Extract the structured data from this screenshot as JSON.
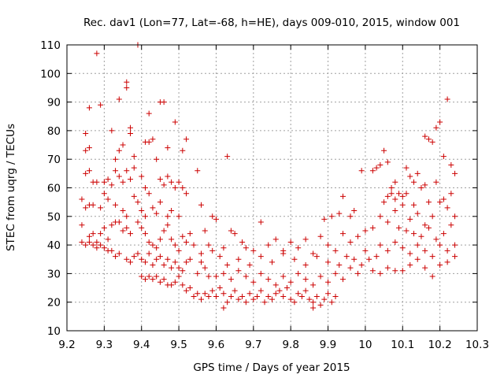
{
  "chart_data": {
    "type": "scatter",
    "title": "Rec. dav1 (Lon=77, Lat=-68, h=HE), days 009-010, 2015, window 001",
    "xlabel": "GPS time / Days of year 2015",
    "ylabel": "STEC from uqrg / TECUs",
    "xlim": [
      9.2,
      10.3
    ],
    "ylim": [
      10,
      110
    ],
    "xticks": [
      9.2,
      9.3,
      9.4,
      9.5,
      9.6,
      9.7,
      9.8,
      9.9,
      10,
      10.1,
      10.2,
      10.3
    ],
    "xtick_labels": [
      "9.2",
      "9.3",
      "9.4",
      "9.5",
      "9.6",
      "9.7",
      "9.8",
      "9.9",
      "10",
      "10.1",
      "10.2",
      "10.3"
    ],
    "yticks": [
      10,
      20,
      30,
      40,
      50,
      60,
      70,
      80,
      90,
      100,
      110
    ],
    "ytick_labels": [
      "10",
      "20",
      "30",
      "40",
      "50",
      "60",
      "70",
      "80",
      "90",
      "100",
      "110"
    ],
    "grid": true,
    "marker_color": "#cc0000",
    "marker": "plus",
    "points": [
      [
        9.28,
        107
      ],
      [
        9.39,
        110
      ],
      [
        9.36,
        97
      ],
      [
        9.36,
        95
      ],
      [
        9.34,
        91
      ],
      [
        9.29,
        89
      ],
      [
        9.26,
        88
      ],
      [
        9.45,
        90
      ],
      [
        9.46,
        90
      ],
      [
        9.42,
        86
      ],
      [
        9.49,
        83
      ],
      [
        9.37,
        81
      ],
      [
        9.37,
        79
      ],
      [
        9.32,
        80
      ],
      [
        9.41,
        76
      ],
      [
        9.42,
        76
      ],
      [
        9.43,
        77
      ],
      [
        9.52,
        77
      ],
      [
        9.47,
        74
      ],
      [
        9.51,
        73
      ],
      [
        9.26,
        74
      ],
      [
        9.25,
        73
      ],
      [
        9.35,
        75
      ],
      [
        9.34,
        73
      ],
      [
        9.38,
        71
      ],
      [
        9.33,
        70
      ],
      [
        9.63,
        71
      ],
      [
        9.25,
        79
      ],
      [
        9.26,
        66
      ],
      [
        9.25,
        65
      ],
      [
        9.27,
        62
      ],
      [
        9.28,
        62
      ],
      [
        9.3,
        62
      ],
      [
        9.31,
        63
      ],
      [
        9.32,
        61
      ],
      [
        9.33,
        66
      ],
      [
        9.34,
        64
      ],
      [
        9.35,
        62
      ],
      [
        9.36,
        66
      ],
      [
        9.37,
        63
      ],
      [
        9.38,
        67
      ],
      [
        9.4,
        64
      ],
      [
        9.41,
        60
      ],
      [
        9.42,
        58
      ],
      [
        9.44,
        70
      ],
      [
        9.45,
        63
      ],
      [
        9.46,
        61
      ],
      [
        9.47,
        64
      ],
      [
        9.48,
        62
      ],
      [
        9.49,
        60
      ],
      [
        9.5,
        62
      ],
      [
        9.51,
        60
      ],
      [
        9.55,
        66
      ],
      [
        9.24,
        56
      ],
      [
        9.25,
        53
      ],
      [
        9.26,
        54
      ],
      [
        9.27,
        54
      ],
      [
        9.29,
        53
      ],
      [
        9.3,
        58
      ],
      [
        9.31,
        56
      ],
      [
        9.33,
        54
      ],
      [
        9.35,
        52
      ],
      [
        9.36,
        50
      ],
      [
        9.38,
        57
      ],
      [
        9.39,
        55
      ],
      [
        9.4,
        52
      ],
      [
        9.41,
        50
      ],
      [
        9.43,
        53
      ],
      [
        9.44,
        51
      ],
      [
        9.45,
        55
      ],
      [
        9.47,
        50
      ],
      [
        9.48,
        52
      ],
      [
        9.5,
        50
      ],
      [
        9.52,
        58
      ],
      [
        9.56,
        54
      ],
      [
        9.59,
        50
      ],
      [
        9.6,
        49
      ],
      [
        9.24,
        47
      ],
      [
        9.26,
        43
      ],
      [
        9.27,
        44
      ],
      [
        9.28,
        41
      ],
      [
        9.29,
        44
      ],
      [
        9.3,
        46
      ],
      [
        9.31,
        42
      ],
      [
        9.32,
        47
      ],
      [
        9.33,
        48
      ],
      [
        9.34,
        48
      ],
      [
        9.35,
        45
      ],
      [
        9.36,
        46
      ],
      [
        9.37,
        44
      ],
      [
        9.39,
        48
      ],
      [
        9.4,
        46
      ],
      [
        9.41,
        44
      ],
      [
        9.42,
        41
      ],
      [
        9.43,
        40
      ],
      [
        9.44,
        39
      ],
      [
        9.45,
        42
      ],
      [
        9.46,
        45
      ],
      [
        9.47,
        47
      ],
      [
        9.48,
        42
      ],
      [
        9.49,
        40
      ],
      [
        9.5,
        38
      ],
      [
        9.51,
        43
      ],
      [
        9.52,
        41
      ],
      [
        9.53,
        44
      ],
      [
        9.54,
        40
      ],
      [
        9.56,
        37
      ],
      [
        9.57,
        45
      ],
      [
        9.58,
        40
      ],
      [
        9.59,
        38
      ],
      [
        9.61,
        36
      ],
      [
        9.62,
        39
      ],
      [
        9.64,
        45
      ],
      [
        9.65,
        44
      ],
      [
        9.67,
        41
      ],
      [
        9.68,
        39
      ],
      [
        9.7,
        38
      ],
      [
        9.72,
        48
      ],
      [
        9.24,
        41
      ],
      [
        9.25,
        40
      ],
      [
        9.26,
        41
      ],
      [
        9.27,
        40
      ],
      [
        9.28,
        39
      ],
      [
        9.29,
        40
      ],
      [
        9.3,
        39
      ],
      [
        9.31,
        38
      ],
      [
        9.32,
        38
      ],
      [
        9.33,
        36
      ],
      [
        9.34,
        37
      ],
      [
        9.36,
        35
      ],
      [
        9.37,
        34
      ],
      [
        9.38,
        36
      ],
      [
        9.39,
        37
      ],
      [
        9.4,
        35
      ],
      [
        9.41,
        34
      ],
      [
        9.42,
        37
      ],
      [
        9.43,
        33
      ],
      [
        9.44,
        35
      ],
      [
        9.45,
        36
      ],
      [
        9.46,
        33
      ],
      [
        9.47,
        35
      ],
      [
        9.48,
        32
      ],
      [
        9.49,
        34
      ],
      [
        9.5,
        32
      ],
      [
        9.51,
        31
      ],
      [
        9.52,
        34
      ],
      [
        9.53,
        35
      ],
      [
        9.55,
        30
      ],
      [
        9.56,
        34
      ],
      [
        9.57,
        32
      ],
      [
        9.58,
        29
      ],
      [
        9.4,
        29
      ],
      [
        9.41,
        28
      ],
      [
        9.42,
        29
      ],
      [
        9.43,
        28
      ],
      [
        9.44,
        29
      ],
      [
        9.45,
        27
      ],
      [
        9.46,
        28
      ],
      [
        9.47,
        26
      ],
      [
        9.48,
        26
      ],
      [
        9.49,
        27
      ],
      [
        9.5,
        29
      ],
      [
        9.51,
        26
      ],
      [
        9.52,
        24
      ],
      [
        9.53,
        25
      ],
      [
        9.54,
        22
      ],
      [
        9.55,
        23
      ],
      [
        9.56,
        21
      ],
      [
        9.57,
        23
      ],
      [
        9.58,
        22
      ],
      [
        9.59,
        24
      ],
      [
        9.6,
        22
      ],
      [
        9.61,
        25
      ],
      [
        9.62,
        23
      ],
      [
        9.63,
        20
      ],
      [
        9.64,
        22
      ],
      [
        9.65,
        24
      ],
      [
        9.66,
        21
      ],
      [
        9.67,
        22
      ],
      [
        9.68,
        20
      ],
      [
        9.69,
        23
      ],
      [
        9.7,
        21
      ],
      [
        9.71,
        22
      ],
      [
        9.72,
        24
      ],
      [
        9.73,
        20
      ],
      [
        9.74,
        22
      ],
      [
        9.75,
        21
      ],
      [
        9.76,
        23
      ],
      [
        9.77,
        24
      ],
      [
        9.78,
        22
      ],
      [
        9.79,
        25
      ],
      [
        9.8,
        21
      ],
      [
        9.81,
        20
      ],
      [
        9.82,
        23
      ],
      [
        9.83,
        22
      ],
      [
        9.84,
        24
      ],
      [
        9.85,
        21
      ],
      [
        9.86,
        20
      ],
      [
        9.87,
        22
      ],
      [
        9.88,
        19
      ],
      [
        9.89,
        21
      ],
      [
        9.9,
        23
      ],
      [
        9.91,
        20
      ],
      [
        9.92,
        22
      ],
      [
        9.62,
        18
      ],
      [
        9.86,
        18
      ],
      [
        9.6,
        29
      ],
      [
        9.62,
        30
      ],
      [
        9.64,
        28
      ],
      [
        9.66,
        31
      ],
      [
        9.68,
        29
      ],
      [
        9.7,
        27
      ],
      [
        9.72,
        30
      ],
      [
        9.74,
        28
      ],
      [
        9.76,
        26
      ],
      [
        9.78,
        29
      ],
      [
        9.8,
        27
      ],
      [
        9.82,
        30
      ],
      [
        9.84,
        28
      ],
      [
        9.86,
        26
      ],
      [
        9.88,
        29
      ],
      [
        9.9,
        27
      ],
      [
        9.92,
        30
      ],
      [
        9.94,
        28
      ],
      [
        9.96,
        32
      ],
      [
        9.98,
        30
      ],
      [
        9.63,
        33
      ],
      [
        9.66,
        35
      ],
      [
        9.69,
        33
      ],
      [
        9.72,
        36
      ],
      [
        9.75,
        34
      ],
      [
        9.78,
        37
      ],
      [
        9.81,
        35
      ],
      [
        9.84,
        33
      ],
      [
        9.87,
        36
      ],
      [
        9.9,
        34
      ],
      [
        9.93,
        33
      ],
      [
        9.95,
        36
      ],
      [
        9.97,
        35
      ],
      [
        9.99,
        33
      ],
      [
        10.0,
        38
      ],
      [
        9.74,
        40
      ],
      [
        9.76,
        42
      ],
      [
        9.78,
        38
      ],
      [
        9.8,
        41
      ],
      [
        9.82,
        39
      ],
      [
        9.84,
        42
      ],
      [
        9.86,
        37
      ],
      [
        9.88,
        43
      ],
      [
        9.9,
        40
      ],
      [
        9.92,
        38
      ],
      [
        9.94,
        44
      ],
      [
        9.96,
        41
      ],
      [
        9.98,
        43
      ],
      [
        10.0,
        45
      ],
      [
        9.89,
        49
      ],
      [
        9.91,
        50
      ],
      [
        9.93,
        51
      ],
      [
        9.94,
        57
      ],
      [
        9.96,
        50
      ],
      [
        9.97,
        52
      ],
      [
        9.99,
        66
      ],
      [
        10.02,
        66
      ],
      [
        10.03,
        67
      ],
      [
        10.04,
        68
      ],
      [
        10.05,
        73
      ],
      [
        10.06,
        69
      ],
      [
        10.07,
        60
      ],
      [
        10.08,
        62
      ],
      [
        10.05,
        55
      ],
      [
        10.06,
        57
      ],
      [
        10.07,
        58
      ],
      [
        10.08,
        56
      ],
      [
        10.09,
        58
      ],
      [
        10.1,
        57
      ],
      [
        10.11,
        58
      ],
      [
        10.12,
        64
      ],
      [
        10.13,
        62
      ],
      [
        10.14,
        65
      ],
      [
        10.15,
        60
      ],
      [
        10.16,
        78
      ],
      [
        10.17,
        77
      ],
      [
        10.18,
        76
      ],
      [
        10.19,
        81
      ],
      [
        10.2,
        83
      ],
      [
        10.21,
        71
      ],
      [
        10.22,
        91
      ],
      [
        10.23,
        68
      ],
      [
        10.24,
        65
      ],
      [
        10.11,
        67
      ],
      [
        10.16,
        61
      ],
      [
        10.02,
        46
      ],
      [
        10.04,
        50
      ],
      [
        10.06,
        48
      ],
      [
        10.08,
        52
      ],
      [
        10.1,
        54
      ],
      [
        10.12,
        49
      ],
      [
        10.14,
        51
      ],
      [
        10.16,
        47
      ],
      [
        10.18,
        50
      ],
      [
        10.2,
        55
      ],
      [
        10.22,
        53
      ],
      [
        10.24,
        50
      ],
      [
        10.09,
        46
      ],
      [
        10.11,
        45
      ],
      [
        10.13,
        44
      ],
      [
        10.15,
        43
      ],
      [
        10.17,
        46
      ],
      [
        10.19,
        42
      ],
      [
        10.21,
        44
      ],
      [
        10.23,
        47
      ],
      [
        10.04,
        40
      ],
      [
        10.06,
        38
      ],
      [
        10.08,
        41
      ],
      [
        10.1,
        39
      ],
      [
        10.12,
        37
      ],
      [
        10.14,
        40
      ],
      [
        10.16,
        38
      ],
      [
        10.18,
        36
      ],
      [
        10.2,
        40
      ],
      [
        10.22,
        38
      ],
      [
        10.24,
        40
      ],
      [
        10.02,
        31
      ],
      [
        10.04,
        30
      ],
      [
        10.06,
        32
      ],
      [
        10.08,
        31
      ],
      [
        10.1,
        31
      ],
      [
        10.12,
        33
      ],
      [
        10.14,
        35
      ],
      [
        10.16,
        32
      ],
      [
        10.18,
        29
      ],
      [
        10.2,
        33
      ],
      [
        10.22,
        34
      ],
      [
        10.24,
        36
      ],
      [
        10.23,
        58
      ],
      [
        10.21,
        56
      ],
      [
        10.19,
        62
      ],
      [
        10.17,
        55
      ],
      [
        10.13,
        54
      ],
      [
        10.01,
        35
      ],
      [
        10.03,
        36
      ]
    ]
  }
}
